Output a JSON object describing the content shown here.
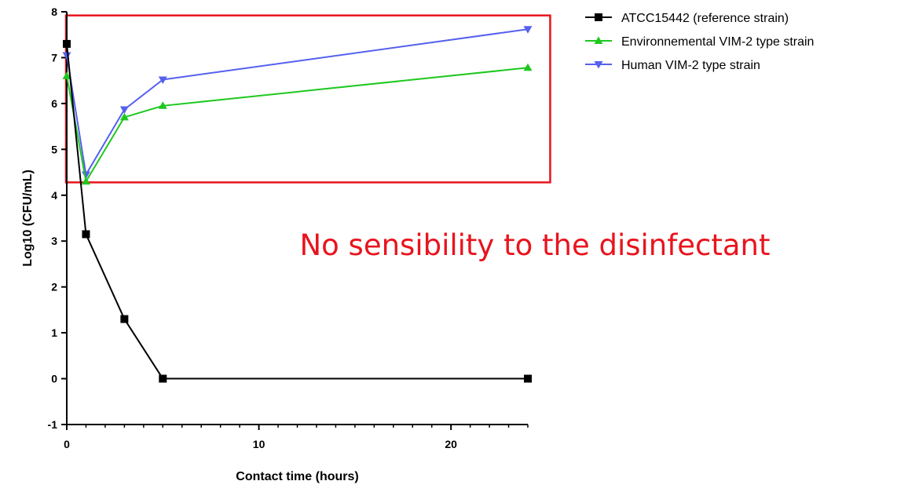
{
  "chart_data": {
    "type": "line",
    "xlabel": "Contact time (hours)",
    "ylabel": "Log10 (CFU/mL)",
    "xlim": [
      0,
      24
    ],
    "ylim": [
      -1,
      8
    ],
    "x_ticks": [
      0,
      10,
      20
    ],
    "x_tick_labels": [
      "0",
      "10",
      "20"
    ],
    "x_minor_step": 1,
    "y_ticks": [
      -1,
      0,
      1,
      2,
      3,
      4,
      5,
      6,
      7,
      8
    ],
    "y_tick_labels": [
      "-1",
      "0",
      "1",
      "2",
      "3",
      "4",
      "5",
      "6",
      "7",
      "8"
    ],
    "grid": false,
    "legend_position": "top-right",
    "series": [
      {
        "name": "ATCC15442 (reference strain)",
        "color": "#000000",
        "marker": "square",
        "x": [
          0,
          1,
          3,
          5,
          24
        ],
        "y": [
          7.3,
          3.15,
          1.3,
          0.0,
          0.0
        ]
      },
      {
        "name": "Environnemental VIM-2 type strain",
        "color": "#1ec81e",
        "marker": "triangle-up",
        "x": [
          0,
          1,
          3,
          5,
          24
        ],
        "y": [
          6.6,
          4.3,
          5.7,
          5.95,
          6.78
        ]
      },
      {
        "name": "Human VIM-2 type strain",
        "color": "#5560ee",
        "marker": "triangle-down",
        "x": [
          0,
          1,
          3,
          5,
          24
        ],
        "y": [
          7.05,
          4.45,
          5.87,
          6.52,
          7.62
        ]
      }
    ],
    "annotation": {
      "text": "No sensibility to the disinfectant",
      "color": "#e8141e",
      "highlight_box": {
        "color": "#e8141e",
        "x_range": [
          0,
          25
        ],
        "y_range": [
          4.28,
          7.92
        ]
      }
    }
  }
}
